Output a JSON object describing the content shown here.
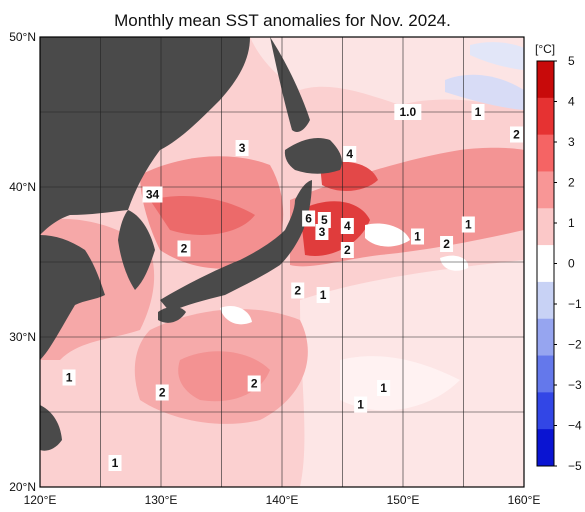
{
  "title": "Monthly mean SST anomalies for Nov. 2024.",
  "colorbar": {
    "unit": "[°C]",
    "ticks": [
      "5",
      "4",
      "3",
      "2",
      "1",
      "0",
      "−1",
      "−2",
      "−3",
      "−4",
      "−5"
    ],
    "colors": [
      "#c80a0a",
      "#e63232",
      "#f56464",
      "#f89696",
      "#fbc8c8",
      "#ffffff",
      "#c8d2f5",
      "#96a5f0",
      "#6478eb",
      "#3246e6",
      "#0a14d2"
    ]
  },
  "chart_data": {
    "type": "heatmap",
    "title": "Monthly mean SST anomalies for Nov. 2024.",
    "unit": "°C",
    "xlim": [
      120,
      160
    ],
    "ylim": [
      20,
      50
    ],
    "x_ticks": [
      "120°E",
      "130°E",
      "140°E",
      "150°E",
      "160°E"
    ],
    "y_ticks": [
      "20°N",
      "30°N",
      "40°N",
      "50°N"
    ],
    "grid": true,
    "contour_labels": [
      {
        "text": "3",
        "lon": 136.7,
        "lat": 42.6
      },
      {
        "text": "34",
        "lon": 129.3,
        "lat": 39.5
      },
      {
        "text": "4",
        "lon": 145.6,
        "lat": 42.2
      },
      {
        "text": "6",
        "lon": 142.2,
        "lat": 37.9
      },
      {
        "text": "5",
        "lon": 143.5,
        "lat": 37.8
      },
      {
        "text": "4",
        "lon": 145.4,
        "lat": 37.4
      },
      {
        "text": "3",
        "lon": 143.3,
        "lat": 37.0
      },
      {
        "text": "2",
        "lon": 145.4,
        "lat": 35.8
      },
      {
        "text": "1",
        "lon": 151.2,
        "lat": 36.7
      },
      {
        "text": "2",
        "lon": 153.6,
        "lat": 36.2
      },
      {
        "text": "1",
        "lon": 155.4,
        "lat": 37.5
      },
      {
        "text": "2",
        "lon": 160.8,
        "lat": 43.5
      },
      {
        "text": "1.0",
        "lon": 150.4,
        "lat": 45.0
      },
      {
        "text": "1",
        "lon": 156.2,
        "lat": 45.0
      },
      {
        "text": "2",
        "lon": 131.9,
        "lat": 35.9
      },
      {
        "text": "2",
        "lon": 141.3,
        "lat": 33.1
      },
      {
        "text": "1",
        "lon": 143.4,
        "lat": 32.8
      },
      {
        "text": "1",
        "lon": 122.4,
        "lat": 27.3
      },
      {
        "text": "2",
        "lon": 130.1,
        "lat": 26.3
      },
      {
        "text": "2",
        "lon": 137.7,
        "lat": 26.9
      },
      {
        "text": "1",
        "lon": 148.4,
        "lat": 26.6
      },
      {
        "text": "1",
        "lon": 146.5,
        "lat": 25.5
      },
      {
        "text": "1",
        "lon": 126.2,
        "lat": 21.6
      }
    ]
  }
}
